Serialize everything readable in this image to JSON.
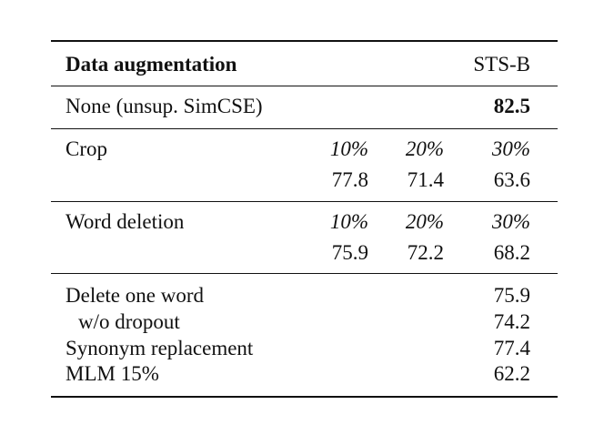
{
  "table": {
    "header": {
      "col1": "Data augmentation",
      "col4": "STS-B"
    },
    "baseline": {
      "label": "None (unsup. SimCSE)",
      "value": "82.5"
    },
    "crop": {
      "label": "Crop",
      "rates": [
        "10%",
        "20%",
        "30%"
      ],
      "scores": [
        "77.8",
        "71.4",
        "63.6"
      ]
    },
    "word_deletion": {
      "label": "Word deletion",
      "rates": [
        "10%",
        "20%",
        "30%"
      ],
      "scores": [
        "75.9",
        "72.2",
        "68.2"
      ]
    },
    "others": [
      {
        "label": "Delete one word",
        "value": "75.9"
      },
      {
        "label": "w/o dropout",
        "value": "74.2"
      },
      {
        "label": "Synonym replacement",
        "value": "77.4"
      },
      {
        "label": "MLM 15%",
        "value": "62.2"
      }
    ]
  }
}
